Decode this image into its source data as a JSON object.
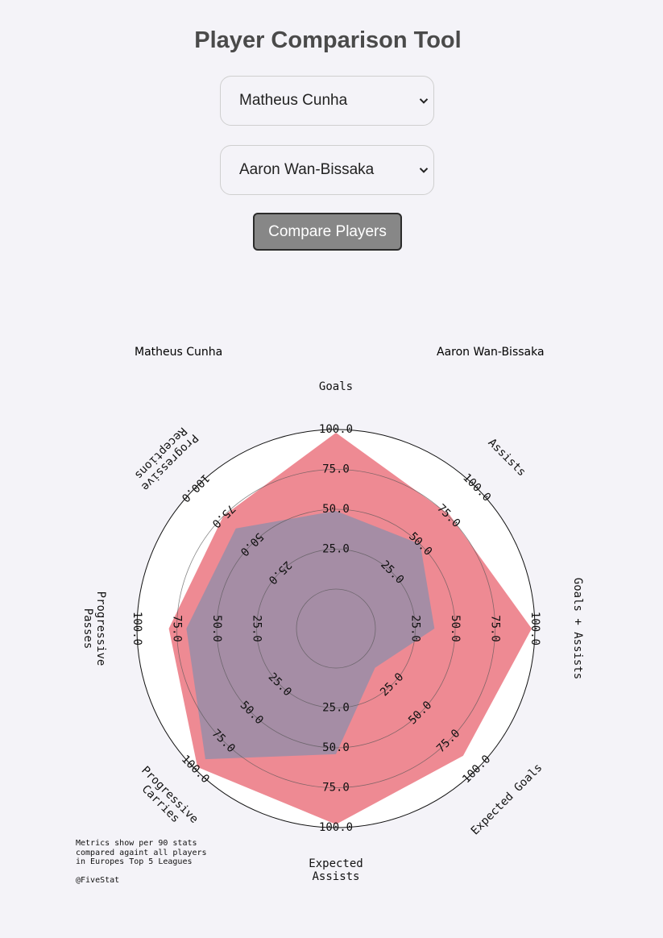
{
  "page": {
    "title": "Player Comparison Tool",
    "select1_value": "Matheus Cunha",
    "select2_value": "Aaron Wan-Bissaka",
    "compare_label": "Compare Players"
  },
  "chart_data": {
    "type": "radar",
    "axes": [
      "Goals",
      "Assists",
      "Goals + Assists",
      "Expected Goals",
      "Expected Assists",
      "Progressive Carries",
      "Progressive Passes",
      "Progressive Receptions"
    ],
    "axis_label_lines": [
      [
        "Goals"
      ],
      [
        "Assists"
      ],
      [
        "Goals + Assists"
      ],
      [
        "Expected Goals"
      ],
      [
        "Expected",
        "Assists"
      ],
      [
        "Progressive",
        "Carries"
      ],
      [
        "Progressive",
        "Passes"
      ],
      [
        "Progressive",
        "Receptions"
      ]
    ],
    "rlim": [
      0,
      100
    ],
    "ticks": [
      25,
      50,
      75,
      100
    ],
    "tick_labels": [
      "25.0",
      "50.0",
      "75.0",
      "100.0"
    ],
    "series": [
      {
        "name": "Matheus Cunha",
        "color": "#e8636f",
        "values": [
          98,
          76,
          98,
          88,
          98,
          98,
          80,
          75
        ]
      },
      {
        "name": "Aaron Wan-Bissaka",
        "color": "#6a90b4",
        "values": [
          49,
          50,
          37,
          10,
          54,
          91,
          69,
          64
        ]
      }
    ]
  },
  "note": {
    "lines": [
      "Metrics show per 90 stats",
      "compared againt all players",
      "in Europes Top 5 Leagues",
      "",
      "@FiveStat"
    ]
  },
  "colors": {
    "series1": "#e8636f",
    "series2": "#6a90b4",
    "button": "#878787"
  }
}
